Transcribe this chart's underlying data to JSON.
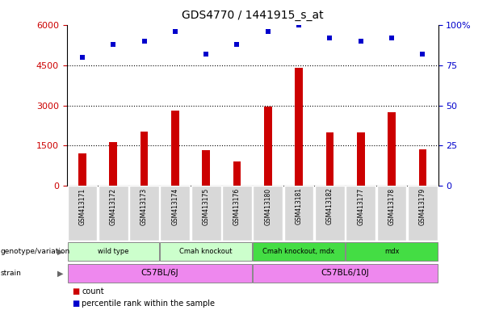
{
  "title": "GDS4770 / 1441915_s_at",
  "samples": [
    "GSM413171",
    "GSM413172",
    "GSM413173",
    "GSM413174",
    "GSM413175",
    "GSM413176",
    "GSM413180",
    "GSM413181",
    "GSM413182",
    "GSM413177",
    "GSM413178",
    "GSM413179"
  ],
  "counts": [
    1200,
    1620,
    2020,
    2820,
    1330,
    900,
    2950,
    4400,
    2000,
    2000,
    2750,
    1350
  ],
  "percentiles": [
    80,
    88,
    90,
    96,
    82,
    88,
    96,
    100,
    92,
    90,
    92,
    82
  ],
  "bar_color": "#cc0000",
  "dot_color": "#0000cc",
  "ylim_left": [
    0,
    6000
  ],
  "yticks_left": [
    0,
    1500,
    3000,
    4500,
    6000
  ],
  "ylim_right": [
    0,
    100
  ],
  "yticks_right": [
    0,
    25,
    50,
    75,
    100
  ],
  "genotype_groups": [
    {
      "label": "wild type",
      "start": 0,
      "end": 2,
      "color": "#ccffcc"
    },
    {
      "label": "Cmah knockout",
      "start": 3,
      "end": 5,
      "color": "#ccffcc"
    },
    {
      "label": "Cmah knockout, mdx",
      "start": 6,
      "end": 8,
      "color": "#44dd44"
    },
    {
      "label": "mdx",
      "start": 9,
      "end": 11,
      "color": "#44dd44"
    }
  ],
  "strain_groups": [
    {
      "label": "C57BL/6J",
      "start": 0,
      "end": 5,
      "color": "#ee88ee"
    },
    {
      "label": "C57BL6/10J",
      "start": 6,
      "end": 11,
      "color": "#ee88ee"
    }
  ],
  "legend_count_label": "count",
  "legend_pct_label": "percentile rank within the sample",
  "tick_color_left": "#cc0000",
  "tick_color_right": "#0000cc"
}
